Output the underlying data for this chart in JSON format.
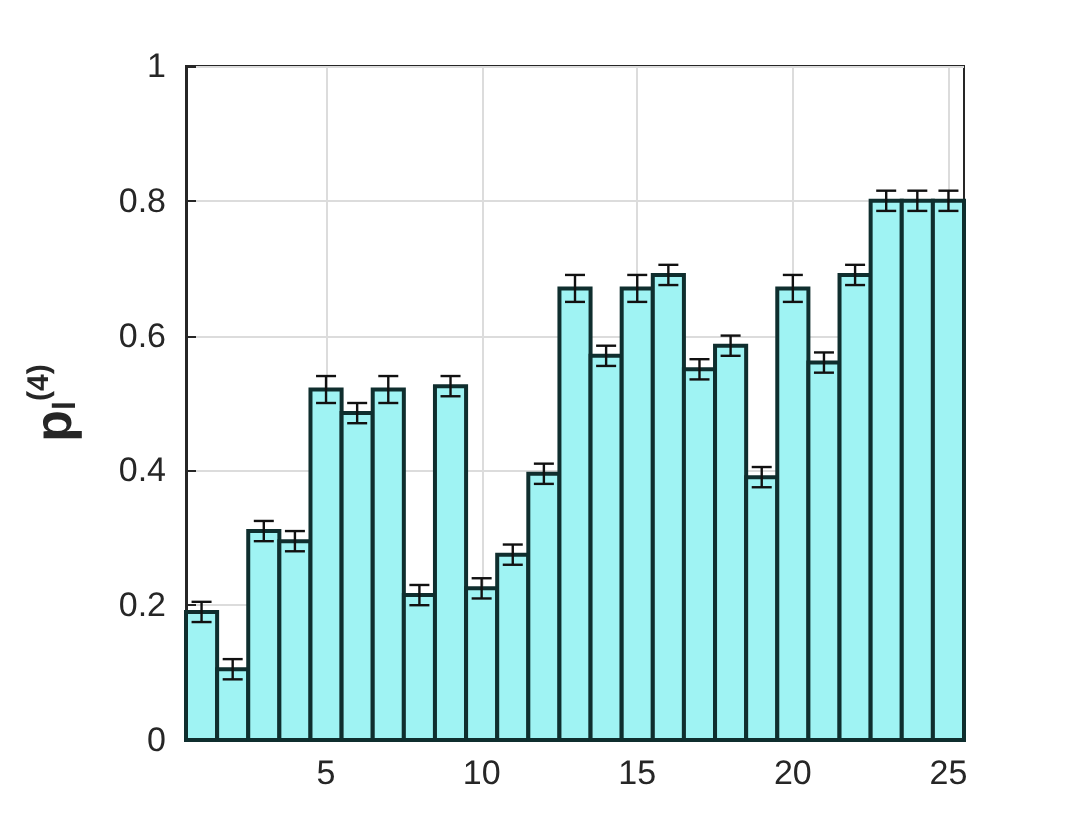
{
  "chart_data": {
    "type": "bar",
    "ylabel": "p$_{l}$$^{(4)}$",
    "x": [
      1,
      2,
      3,
      4,
      5,
      6,
      7,
      8,
      9,
      10,
      11,
      12,
      13,
      14,
      15,
      16,
      17,
      18,
      19,
      20,
      21,
      22,
      23,
      24,
      25
    ],
    "values": [
      0.19,
      0.105,
      0.31,
      0.295,
      0.52,
      0.485,
      0.52,
      0.215,
      0.525,
      0.225,
      0.275,
      0.395,
      0.67,
      0.57,
      0.67,
      0.69,
      0.55,
      0.585,
      0.39,
      0.67,
      0.56,
      0.69,
      0.8,
      0.8,
      0.8
    ],
    "errors": [
      0.015,
      0.015,
      0.015,
      0.015,
      0.02,
      0.015,
      0.02,
      0.015,
      0.015,
      0.015,
      0.015,
      0.015,
      0.02,
      0.015,
      0.02,
      0.015,
      0.015,
      0.015,
      0.015,
      0.02,
      0.015,
      0.015,
      0.015,
      0.015,
      0.015
    ],
    "color": "#9ff3f3",
    "xlim": [
      0.5,
      25.5
    ],
    "xticks": [
      5,
      10,
      15,
      20,
      25
    ],
    "ylim": [
      0,
      1
    ],
    "yticks": [
      0,
      0.2,
      0.4,
      0.6,
      0.8,
      1
    ],
    "grid": true
  }
}
